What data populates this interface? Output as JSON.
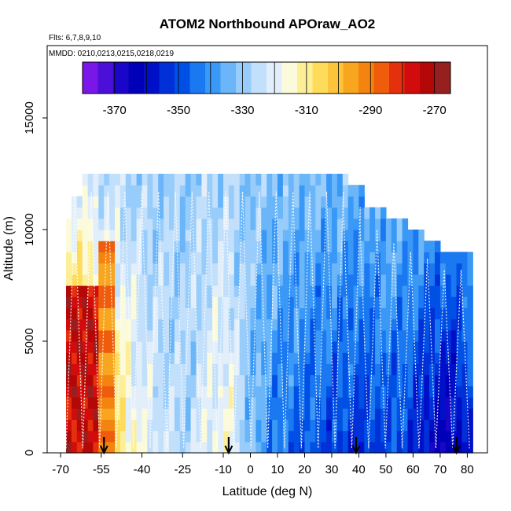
{
  "chart_data": {
    "type": "heatmap",
    "title": "ATOM2 Northbound APOraw_AO2",
    "subtitle_flights": "Flts: 6,7,8,9,10",
    "subtitle_dates": "MMDD: 0210,0213,0215,0218,0219",
    "xlabel": "Latitude (deg N)",
    "ylabel": "Altitude (m)",
    "xlim": [
      -70,
      85
    ],
    "ylim": [
      0,
      17500
    ],
    "x_ticks": [
      -70,
      -55,
      -40,
      -25,
      -10,
      0,
      10,
      20,
      30,
      40,
      50,
      60,
      70,
      80
    ],
    "x_tick_labels": [
      "-70",
      "-55",
      "-40",
      "-25",
      "-10",
      "0",
      "10",
      "20",
      "30",
      "40",
      "50",
      "60",
      "70",
      "80"
    ],
    "y_ticks": [
      0,
      5000,
      10000,
      15000
    ],
    "y_tick_labels": [
      "0",
      "5000",
      "10000",
      "15000"
    ],
    "colorbar": {
      "range": [
        -380,
        -265
      ],
      "tick_values": [
        -370,
        -350,
        -330,
        -310,
        -290,
        -270
      ],
      "tick_labels": [
        "-370",
        "-350",
        "-330",
        "-310",
        "-290",
        "-270"
      ],
      "colors": [
        "#7b16e8",
        "#4a0fd8",
        "#1a06c8",
        "#0000b8",
        "#0010c8",
        "#0030d8",
        "#0050e6",
        "#1a78f0",
        "#3a98f6",
        "#6ab6f8",
        "#98ccfa",
        "#c2e0fb",
        "#e2effb",
        "#fbfbdc",
        "#fcef98",
        "#fddc5c",
        "#fbc43a",
        "#f8a620",
        "#f48410",
        "#ee5c0c",
        "#e4300c",
        "#d20c0c",
        "#b40808",
        "#962020"
      ]
    },
    "stations": [
      -54,
      -8,
      39,
      76
    ],
    "legend_position": "top"
  }
}
